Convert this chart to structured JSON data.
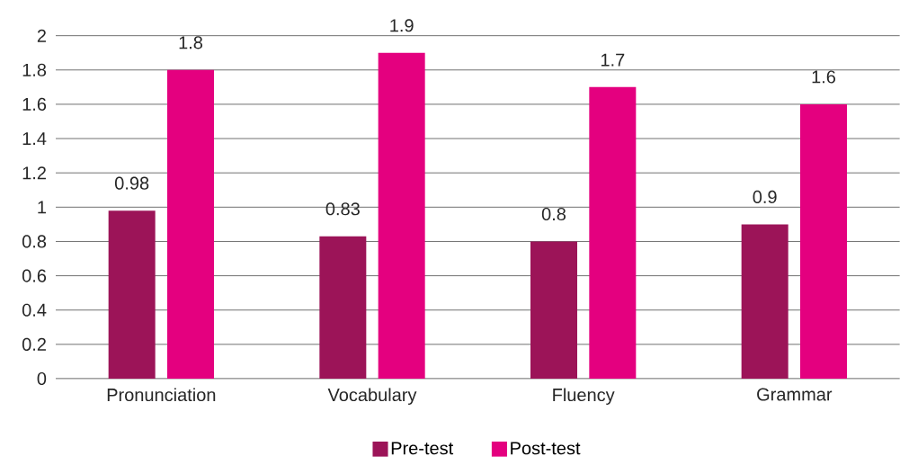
{
  "chart_data": {
    "type": "bar",
    "categories": [
      "Pronunciation",
      "Vocabulary",
      "Fluency",
      "Grammar"
    ],
    "series": [
      {
        "name": "Pre-test",
        "color": "#9c1458",
        "values": [
          0.98,
          0.83,
          0.8,
          0.9
        ]
      },
      {
        "name": "Post-test",
        "color": "#e4007f",
        "values": [
          1.8,
          1.9,
          1.7,
          1.6
        ]
      }
    ],
    "ylim": [
      0,
      2
    ],
    "yticks": [
      0,
      0.2,
      0.4,
      0.6,
      0.8,
      1,
      1.2,
      1.4,
      1.6,
      1.8,
      2
    ],
    "grid": "y",
    "legend": "bottom",
    "data_labels": true
  }
}
